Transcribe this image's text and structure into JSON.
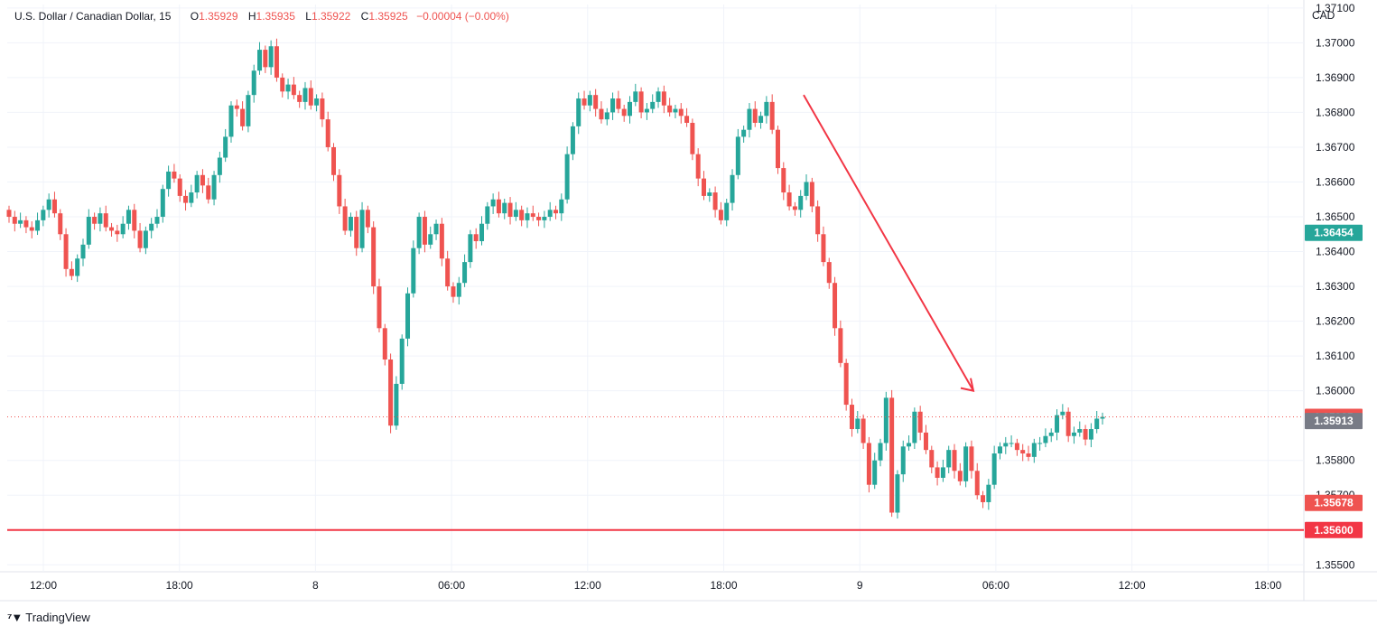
{
  "header": {
    "symbol": "U.S. Dollar / Canadian Dollar, 15",
    "open_label": "O",
    "open": "1.35929",
    "high_label": "H",
    "high": "1.35935",
    "low_label": "L",
    "low": "1.35922",
    "close_label": "C",
    "close": "1.35925",
    "change": "−0.00004 (−0.00%)"
  },
  "currency": "CAD",
  "branding": "TradingView",
  "colors": {
    "up": "#26a69a",
    "down": "#ef5350",
    "support_line": "#f23645",
    "arrow": "#f23645",
    "grid": "#f0f3fa"
  },
  "chart_data": {
    "type": "candlestick",
    "y_ticks": [
      "1.37100",
      "1.37000",
      "1.36900",
      "1.36800",
      "1.36700",
      "1.36600",
      "1.36500",
      "1.36400",
      "1.36300",
      "1.36200",
      "1.36100",
      "1.36000",
      "1.35800",
      "1.35700",
      "1.35500"
    ],
    "ylim": [
      1.3548,
      1.3711
    ],
    "x_ticks": [
      "12:00",
      "18:00",
      "8",
      "06:00",
      "12:00",
      "18:00",
      "9",
      "06:00",
      "12:00",
      "18:00"
    ],
    "price_labels": [
      {
        "value": "1.36454",
        "color": "#26a69a"
      },
      {
        "value": "1.35925",
        "color": "#ef5350"
      },
      {
        "value": "1.35913",
        "color": "#787b86"
      },
      {
        "value": "1.35678",
        "color": "#ef5350"
      },
      {
        "value": "1.35600",
        "color": "#f23645"
      }
    ],
    "support_level": 1.356,
    "last_price": 1.35925,
    "annotation": {
      "type": "arrow",
      "from_price": 1.3685,
      "to_price": 1.36
    },
    "closes": [
      1.365,
      1.3648,
      1.3649,
      1.3647,
      1.3646,
      1.3649,
      1.3652,
      1.3655,
      1.3651,
      1.3645,
      1.3635,
      1.3633,
      1.3638,
      1.3642,
      1.365,
      1.3648,
      1.3651,
      1.3647,
      1.3646,
      1.3645,
      1.3648,
      1.3652,
      1.3646,
      1.3641,
      1.3646,
      1.3648,
      1.365,
      1.3658,
      1.3663,
      1.3661,
      1.3656,
      1.3654,
      1.3657,
      1.3662,
      1.3659,
      1.3655,
      1.3662,
      1.3667,
      1.3673,
      1.3682,
      1.3681,
      1.3676,
      1.3685,
      1.3692,
      1.3698,
      1.3693,
      1.3699,
      1.369,
      1.3686,
      1.3688,
      1.3685,
      1.3683,
      1.3687,
      1.3682,
      1.3684,
      1.3678,
      1.367,
      1.3662,
      1.3653,
      1.3646,
      1.365,
      1.3641,
      1.3652,
      1.3647,
      1.363,
      1.3618,
      1.3609,
      1.359,
      1.3602,
      1.3615,
      1.3628,
      1.3641,
      1.365,
      1.3642,
      1.3645,
      1.3648,
      1.3638,
      1.363,
      1.3627,
      1.3631,
      1.3637,
      1.3645,
      1.3643,
      1.3648,
      1.3653,
      1.3655,
      1.3651,
      1.3654,
      1.365,
      1.3652,
      1.3649,
      1.3651,
      1.365,
      1.3649,
      1.365,
      1.3652,
      1.3651,
      1.3655,
      1.3668,
      1.3676,
      1.3684,
      1.3682,
      1.3685,
      1.3681,
      1.3678,
      1.368,
      1.3684,
      1.3681,
      1.3679,
      1.3683,
      1.3686,
      1.368,
      1.3681,
      1.3683,
      1.3686,
      1.3682,
      1.368,
      1.3681,
      1.3679,
      1.3677,
      1.3668,
      1.3661,
      1.3656,
      1.3657,
      1.3652,
      1.3649,
      1.3654,
      1.3662,
      1.3673,
      1.3675,
      1.3681,
      1.3677,
      1.3679,
      1.3683,
      1.3675,
      1.3664,
      1.3657,
      1.3653,
      1.3652,
      1.3656,
      1.366,
      1.3653,
      1.3645,
      1.3637,
      1.3631,
      1.3618,
      1.3608,
      1.3596,
      1.3589,
      1.3592,
      1.3585,
      1.3573,
      1.358,
      1.3585,
      1.3598,
      1.3565,
      1.3576,
      1.3584,
      1.3585,
      1.3594,
      1.3588,
      1.3583,
      1.3578,
      1.3575,
      1.3578,
      1.3583,
      1.3577,
      1.3574,
      1.3584,
      1.3577,
      1.357,
      1.3568,
      1.3573,
      1.3582,
      1.3584,
      1.3585,
      1.3585,
      1.3583,
      1.3582,
      1.3581,
      1.3585,
      1.3585,
      1.3587,
      1.3588,
      1.3593,
      1.3594,
      1.3587,
      1.3588,
      1.3589,
      1.3586,
      1.3589,
      1.3592,
      1.35925
    ]
  }
}
